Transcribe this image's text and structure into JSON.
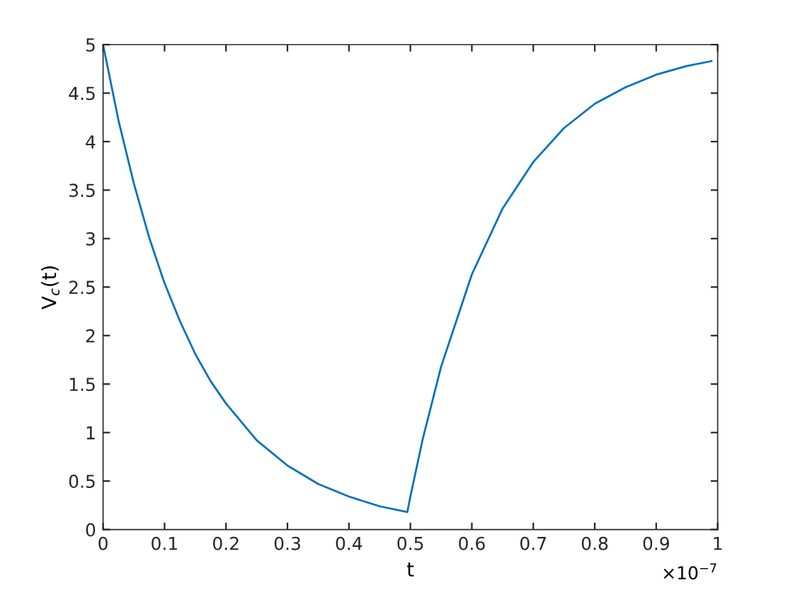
{
  "chart_data": {
    "type": "line",
    "xlabel": "t",
    "ylabel": "V$_{c}$(t)",
    "x": [
      0,
      0.025,
      0.05,
      0.075,
      0.1,
      0.125,
      0.15,
      0.175,
      0.2,
      0.25,
      0.3,
      0.35,
      0.4,
      0.45,
      0.495,
      0.5,
      0.52,
      0.55,
      0.6,
      0.65,
      0.7,
      0.75,
      0.8,
      0.85,
      0.9,
      0.95,
      0.99
    ],
    "series": [
      {
        "color": "#0072bd",
        "values": [
          5,
          4.22,
          3.57,
          3.01,
          2.54,
          2.15,
          1.81,
          1.53,
          1.3,
          0.92,
          0.66,
          0.47,
          0.34,
          0.24,
          0.18,
          0.34,
          0.93,
          1.68,
          2.63,
          3.31,
          3.79,
          4.14,
          4.39,
          4.56,
          4.69,
          4.78,
          4.83
        ]
      }
    ],
    "xlim": [
      0,
      1
    ],
    "ylim": [
      0,
      5
    ],
    "xticks": [
      0,
      0.1,
      0.2,
      0.3,
      0.4,
      0.5,
      0.6,
      0.7,
      0.8,
      0.9,
      1
    ],
    "yticks": [
      0,
      0.5,
      1,
      1.5,
      2,
      2.5,
      3,
      3.5,
      4,
      4.5,
      5
    ],
    "annotations": [
      "×10$^{−7}$"
    ],
    "grid": false,
    "legend": false,
    "marker": "none",
    "line_style": "solid"
  }
}
